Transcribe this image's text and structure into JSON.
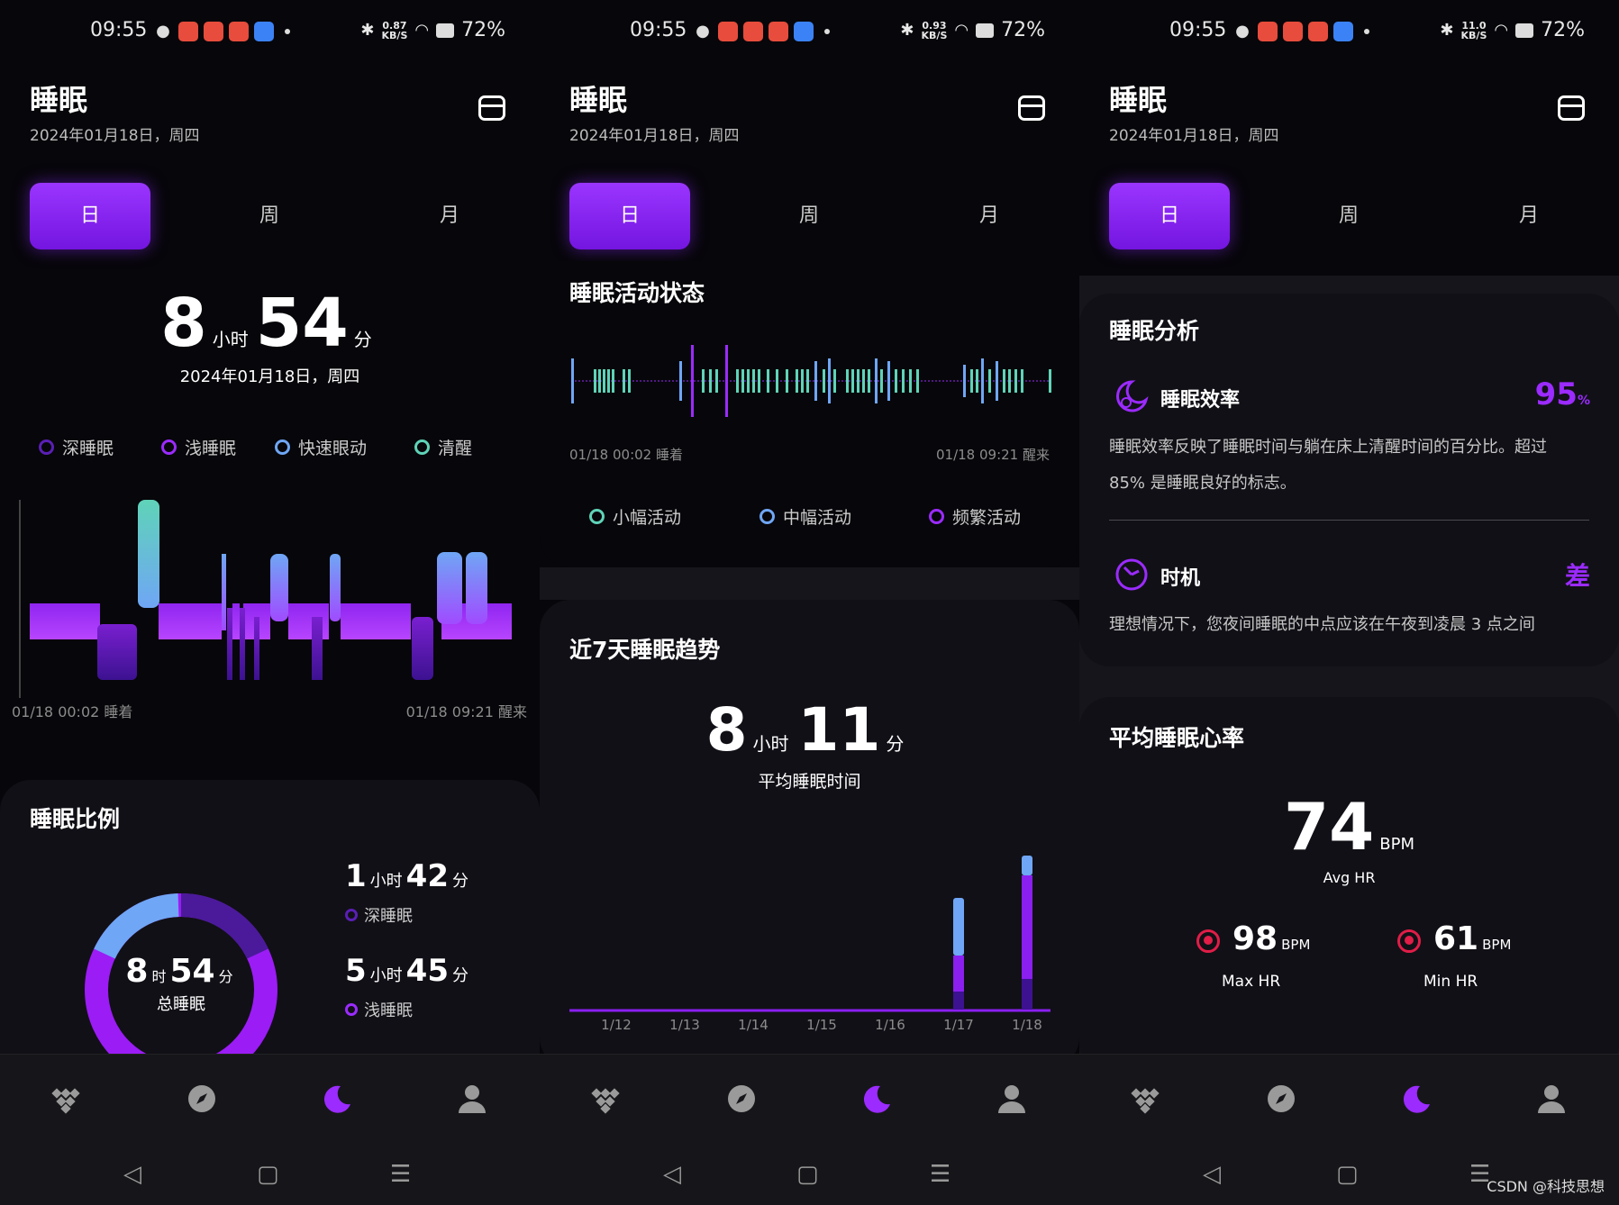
{
  "status": {
    "time": "09:55",
    "battery": "72%",
    "speeds": [
      "0.87",
      "0.93",
      "11.0"
    ],
    "speed_unit": "KB/S"
  },
  "header": {
    "title": "睡眠",
    "date": "2024年01月18日，周四",
    "calendar_icon": "calendar-icon"
  },
  "tabs": [
    "日",
    "周",
    "月"
  ],
  "screen1": {
    "duration": {
      "hours": "8",
      "hours_unit": "小时",
      "minutes": "54",
      "minutes_unit": "分"
    },
    "date": "2024年01月18日，周四",
    "legend": [
      {
        "label": "深睡眠",
        "color": "#5a1fb5"
      },
      {
        "label": "浅睡眠",
        "color": "#9b2bff"
      },
      {
        "label": "快速眼动",
        "color": "#6fa6f5"
      },
      {
        "label": "清醒",
        "color": "#5fd3b8"
      }
    ],
    "timeline_start": "01/18 00:02 睡着",
    "timeline_end": "01/18 09:21 醒来",
    "ratio": {
      "title": "睡眠比例",
      "total": {
        "hours": "8",
        "hours_unit": "时",
        "minutes": "54",
        "minutes_unit": "分",
        "label": "总睡眠"
      },
      "deep": {
        "hours": "1",
        "hours_unit": "小时",
        "minutes": "42",
        "minutes_unit": "分",
        "label": "深睡眠"
      },
      "light": {
        "hours": "5",
        "hours_unit": "小时",
        "minutes": "45",
        "minutes_unit": "分",
        "label": "浅睡眠"
      }
    }
  },
  "screen2": {
    "activity_title": "睡眠活动状态",
    "activity_start": "01/18 00:02 睡着",
    "activity_end": "01/18 09:21 醒来",
    "activity_legend": [
      {
        "label": "小幅活动",
        "color": "#5fd3b8"
      },
      {
        "label": "中幅活动",
        "color": "#6fa6f5"
      },
      {
        "label": "频繁活动",
        "color": "#9b2bff"
      }
    ],
    "trend_title": "近7天睡眠趋势",
    "avg": {
      "hours": "8",
      "hours_unit": "小时",
      "minutes": "11",
      "minutes_unit": "分",
      "label": "平均睡眠时间"
    },
    "chart_data": {
      "type": "bar",
      "categories": [
        "1/12",
        "1/13",
        "1/14",
        "1/15",
        "1/16",
        "1/17",
        "1/18"
      ],
      "series": [
        {
          "name": "深睡眠",
          "values": [
            0,
            0,
            0,
            0,
            0,
            1.0,
            1.7
          ]
        },
        {
          "name": "浅睡眠",
          "values": [
            0,
            0,
            0,
            0,
            0,
            2.0,
            5.75
          ]
        },
        {
          "name": "快速眼动",
          "values": [
            0,
            0,
            0,
            0,
            0,
            3.2,
            1.1
          ]
        }
      ]
    }
  },
  "screen3": {
    "analysis_title": "睡眠分析",
    "efficiency": {
      "label": "睡眠效率",
      "value": "95",
      "unit": "%",
      "desc": "睡眠效率反映了睡眠时间与躺在床上清醒时间的百分比。超过 85% 是睡眠良好的标志。"
    },
    "timing": {
      "label": "时机",
      "value": "差",
      "desc": "理想情况下，您夜间睡眠的中点应该在午夜到凌晨 3 点之间"
    },
    "hr_title": "平均睡眠心率",
    "avg_hr": {
      "value": "74",
      "unit": "BPM",
      "label": "Avg HR"
    },
    "max_hr": {
      "value": "98",
      "unit": "BPM",
      "label": "Max HR"
    },
    "min_hr": {
      "value": "61",
      "unit": "BPM",
      "label": "Min HR"
    }
  },
  "nav": {
    "items": [
      "health-grid-icon",
      "compass-icon",
      "moon-icon",
      "profile-icon"
    ],
    "system": [
      "back-icon",
      "home-icon",
      "menu-icon"
    ]
  },
  "watermark": "CSDN @科技思想"
}
